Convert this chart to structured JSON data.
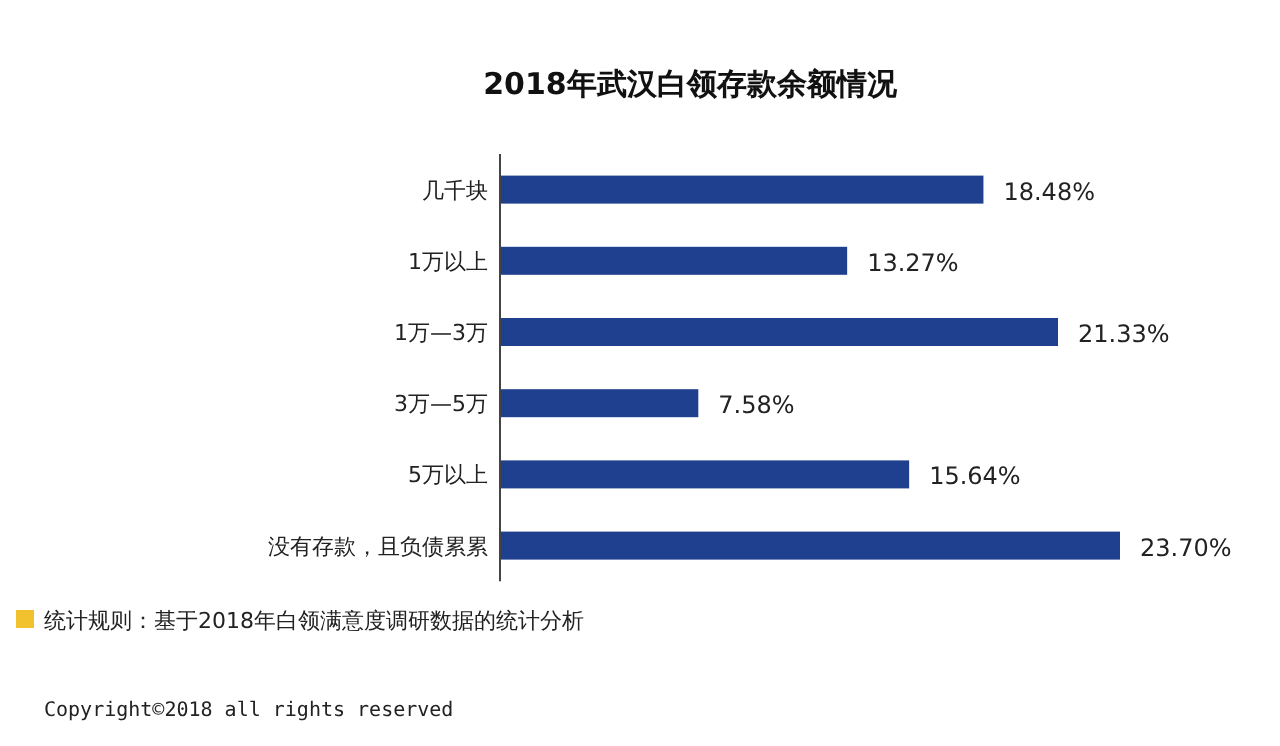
{
  "chart_data": {
    "type": "bar",
    "orientation": "horizontal",
    "title": "2018年武汉白领存款余额情况",
    "categories": [
      "几千块",
      "1万以上",
      "1万—3万",
      "3万—5万",
      "5万以上",
      "没有存款，且负债累累"
    ],
    "values": [
      18.48,
      13.27,
      21.33,
      7.58,
      15.64,
      23.7
    ],
    "value_labels": [
      "18.48%",
      "13.27%",
      "21.33%",
      "7.58%",
      "15.64%",
      "23.70%"
    ],
    "color": "#1f3f8f",
    "annotations": [
      "统计规则：基于2018年白领满意度调研数据的统计分析",
      "Copyright©2018 all rights reserved"
    ]
  }
}
